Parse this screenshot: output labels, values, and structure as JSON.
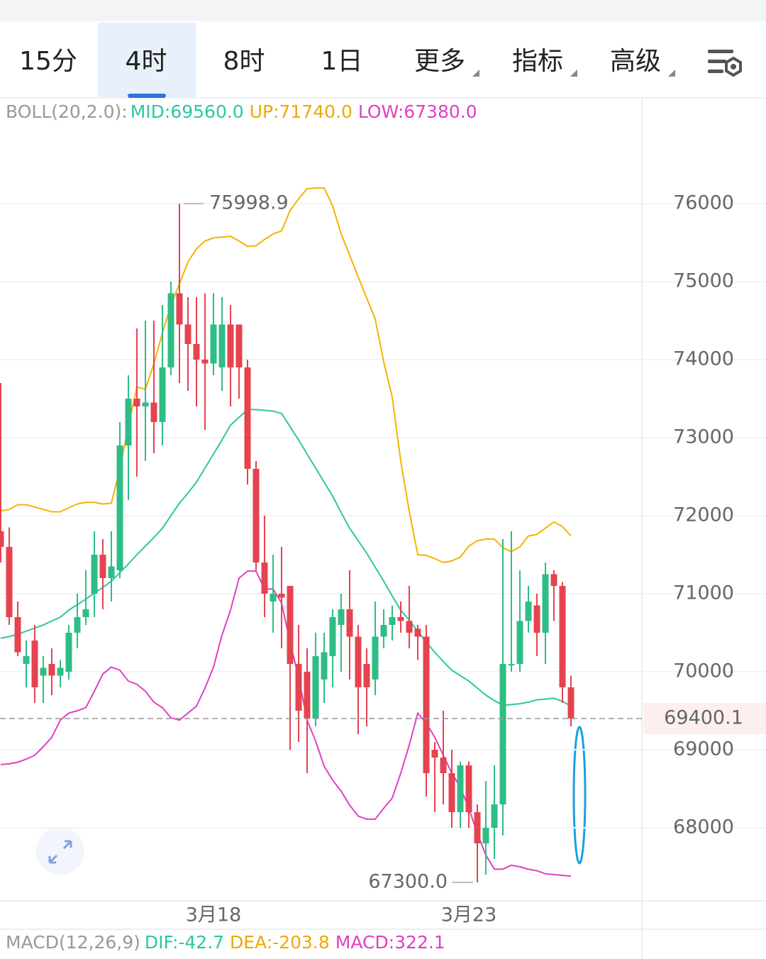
{
  "tabs": [
    {
      "label": "15分",
      "dropdown": false
    },
    {
      "label": "4时",
      "dropdown": false
    },
    {
      "label": "8时",
      "dropdown": false
    },
    {
      "label": "1日",
      "dropdown": false
    },
    {
      "label": "更多",
      "dropdown": true
    },
    {
      "label": "指标",
      "dropdown": true
    },
    {
      "label": "高级",
      "dropdown": true
    }
  ],
  "active_tab": 1,
  "chart_data": {
    "type": "candlestick",
    "indicator": {
      "label": "BOLL(20,2.0):",
      "mid": "MID:69560.0",
      "up": "UP:71740.0",
      "low": "LOW:67380.0"
    },
    "categories": [
      null,
      null,
      null,
      null,
      null,
      null,
      null,
      null,
      null,
      null,
      null,
      null,
      null,
      null,
      null,
      null,
      null,
      null,
      null,
      null,
      null,
      null,
      null,
      null,
      null,
      "3月18",
      null,
      null,
      null,
      null,
      null,
      null,
      null,
      null,
      null,
      null,
      null,
      null,
      null,
      null,
      null,
      null,
      null,
      null,
      null,
      null,
      null,
      null,
      null,
      null,
      null,
      null,
      null,
      null,
      null,
      "3月23",
      null,
      null,
      null,
      null,
      null,
      null,
      null,
      null,
      null,
      null,
      null,
      null
    ],
    "open": [
      71800,
      71600,
      70700,
      70100,
      70400,
      69950,
      70100,
      69950,
      70000,
      70500,
      70700,
      71000,
      71500,
      71200,
      71300,
      72900,
      73500,
      73400,
      73450,
      73200,
      73900,
      74850,
      74450,
      74200,
      74000,
      73950,
      73900,
      74450,
      74450,
      73900,
      72600,
      71400,
      70900,
      71000,
      71100,
      70100,
      70000,
      69400,
      69900,
      70200,
      70600,
      70800,
      70450,
      70100,
      69900,
      70450,
      70600,
      70700,
      70650,
      70550,
      70450,
      69000,
      68900,
      68700,
      68200,
      68800,
      68200,
      67800,
      68000,
      68300,
      70100,
      70100,
      70650,
      70850,
      70500,
      71250,
      71100,
      69800
    ],
    "high": [
      73700,
      71850,
      70900,
      70400,
      70600,
      70200,
      70300,
      70150,
      70600,
      71000,
      71300,
      71800,
      71700,
      71800,
      73200,
      73800,
      74400,
      74500,
      74500,
      74700,
      75000,
      75998.9,
      74800,
      74800,
      74850,
      74850,
      74800,
      74700,
      74450,
      74000,
      72700,
      72000,
      71500,
      71600,
      71100,
      70600,
      70300,
      70500,
      70500,
      70800,
      71000,
      71300,
      70600,
      70300,
      70900,
      70800,
      70850,
      70900,
      71100,
      70600,
      70600,
      69100,
      69500,
      69000,
      68850,
      68850,
      68300,
      68600,
      68800,
      71700,
      71800,
      71300,
      71100,
      71000,
      71400,
      71300,
      71150,
      69950
    ],
    "low": [
      71400,
      70600,
      70200,
      69800,
      69600,
      69600,
      69700,
      69800,
      69900,
      70300,
      70600,
      70700,
      70800,
      70900,
      71200,
      72200,
      72500,
      72700,
      72800,
      72900,
      73800,
      73700,
      73600,
      73400,
      73100,
      73800,
      73600,
      73400,
      73500,
      72400,
      71300,
      70700,
      70500,
      70300,
      69000,
      69100,
      68700,
      69300,
      69600,
      69800,
      70000,
      69900,
      69200,
      69300,
      69700,
      70300,
      70400,
      70500,
      70300,
      70150,
      68400,
      68200,
      68300,
      68000,
      68000,
      68000,
      67300,
      67400,
      67600,
      67900,
      70000,
      70000,
      70500,
      70200,
      70100,
      70650,
      69600,
      69300
    ],
    "close": [
      71600,
      70700,
      70250,
      70200,
      69800,
      70050,
      69950,
      70050,
      70500,
      70700,
      70800,
      71500,
      71200,
      71350,
      72900,
      73500,
      73400,
      73450,
      73200,
      73900,
      74850,
      74450,
      74200,
      74000,
      73950,
      74450,
      74450,
      73900,
      73900,
      72600,
      71400,
      71000,
      71000,
      70950,
      70100,
      69500,
      69400,
      70200,
      70250,
      70700,
      70800,
      70450,
      69800,
      69800,
      70450,
      70600,
      70700,
      70650,
      70500,
      70450,
      68700,
      68900,
      68700,
      68200,
      68800,
      68200,
      67800,
      68000,
      68300,
      70100,
      70100,
      70650,
      70900,
      70500,
      71250,
      71100,
      69800,
      69400
    ],
    "up_color": "#2ebd85",
    "down_color": "#e5434f",
    "bands": [
      {
        "color": "#f5b400",
        "values": [
          72060,
          72080,
          72140,
          72140,
          72110,
          72080,
          72050,
          72050,
          72100,
          72150,
          72170,
          72170,
          72150,
          72160,
          72600,
          73150,
          73650,
          73620,
          73950,
          74340,
          74700,
          74970,
          75250,
          75420,
          75520,
          75560,
          75570,
          75580,
          75520,
          75450,
          75460,
          75540,
          75610,
          75650,
          75910,
          76060,
          76190,
          76200,
          76200,
          75970,
          75610,
          75340,
          75060,
          74790,
          74520,
          73970,
          73520,
          72700,
          72060,
          71500,
          71490,
          71450,
          71400,
          71420,
          71470,
          71610,
          71680,
          71700,
          71700,
          71590,
          71540,
          71600,
          71740,
          71760,
          71840,
          71920,
          71860,
          71740
        ]
      },
      {
        "color": "#2cc7a4",
        "values": [
          70430,
          70450,
          70480,
          70520,
          70560,
          70600,
          70650,
          70700,
          70790,
          70860,
          70930,
          71010,
          71080,
          71160,
          71270,
          71380,
          71500,
          71610,
          71720,
          71840,
          72000,
          72160,
          72290,
          72430,
          72610,
          72790,
          72970,
          73160,
          73260,
          73360,
          73360,
          73350,
          73340,
          73310,
          73140,
          72970,
          72790,
          72610,
          72430,
          72250,
          72040,
          71840,
          71680,
          71520,
          71340,
          71160,
          70970,
          70790,
          70660,
          70520,
          70380,
          70250,
          70130,
          70020,
          69950,
          69880,
          69790,
          69700,
          69630,
          69570,
          69580,
          69590,
          69610,
          69640,
          69650,
          69660,
          69620,
          69560
        ]
      },
      {
        "color": "#e040c0",
        "values": [
          68810,
          68820,
          68840,
          68880,
          68930,
          69040,
          69160,
          69380,
          69470,
          69500,
          69540,
          69750,
          69970,
          70060,
          70020,
          69880,
          69840,
          69750,
          69610,
          69540,
          69410,
          69380,
          69470,
          69560,
          69790,
          70060,
          70470,
          70790,
          71200,
          71290,
          71290,
          71060,
          71060,
          70880,
          70380,
          69930,
          69380,
          69110,
          68790,
          68610,
          68470,
          68290,
          68150,
          68110,
          68110,
          68250,
          68380,
          68700,
          69060,
          69470,
          69340,
          69160,
          68930,
          68700,
          68520,
          68250,
          67930,
          67650,
          67470,
          67470,
          67520,
          67500,
          67470,
          67450,
          67410,
          67400,
          67390,
          67380
        ]
      }
    ],
    "max_label": 75998.9,
    "min_label": {
      "value": 67300,
      "label": "67300.0"
    },
    "last_price": 69400.1,
    "ylim": [
      67064,
      77336
    ],
    "yticks": [
      68000,
      69000,
      70000,
      71000,
      72000,
      73000,
      74000,
      75000,
      76000
    ],
    "grid": true
  },
  "macd": {
    "label": "MACD(12,26,9)",
    "dif": "DIF:-42.7",
    "dea": "DEA:-203.8",
    "macd": "MACD:322.1"
  }
}
